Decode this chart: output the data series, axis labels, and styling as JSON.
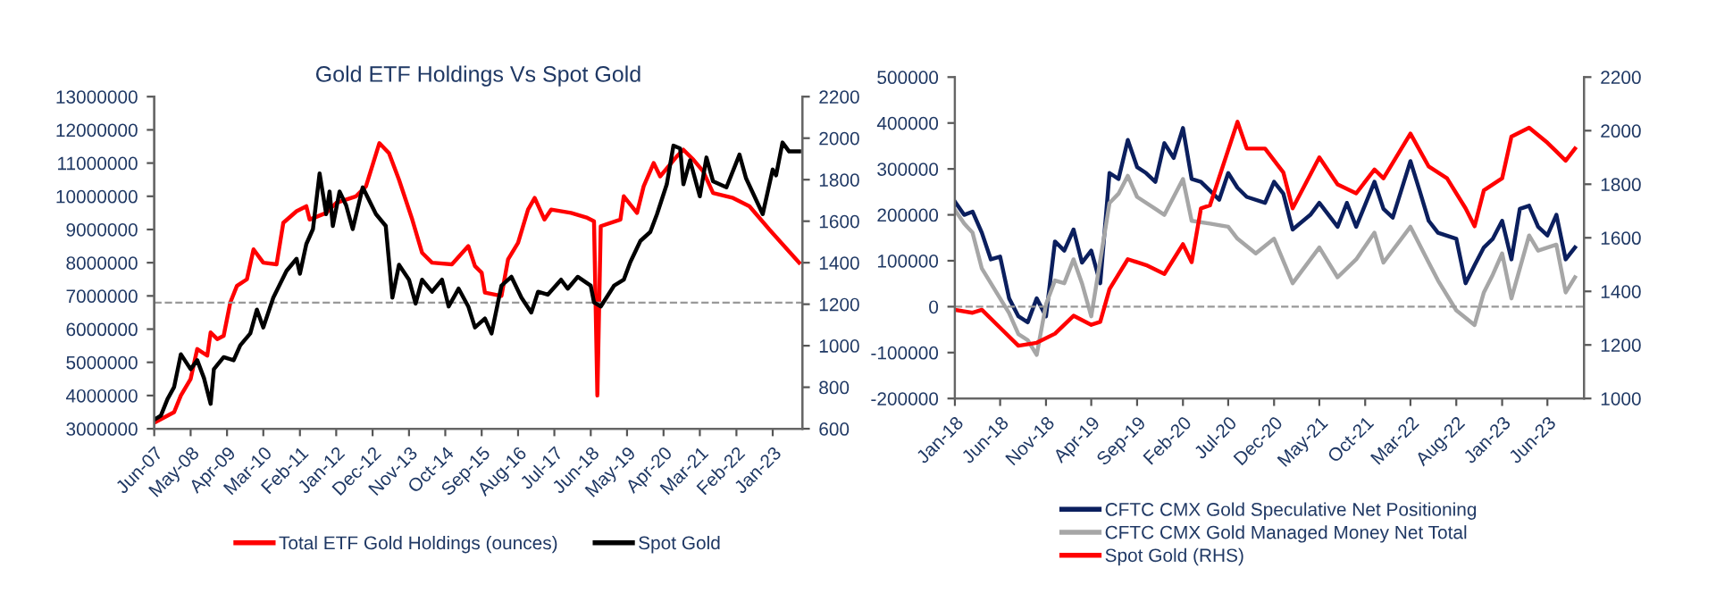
{
  "chart_data": [
    {
      "type": "line",
      "title": "Gold ETF Holdings Vs Spot Gold",
      "xlim": [
        "2007-06",
        "2023-10"
      ],
      "xticks": [
        {
          "value": "2007-06",
          "label": "Jun-07"
        },
        {
          "value": "2008-05",
          "label": "May-08"
        },
        {
          "value": "2009-04",
          "label": "Apr-09"
        },
        {
          "value": "2010-03",
          "label": "Mar-10"
        },
        {
          "value": "2011-02",
          "label": "Feb-11"
        },
        {
          "value": "2012-01",
          "label": "Jan-12"
        },
        {
          "value": "2012-12",
          "label": "Dec-12"
        },
        {
          "value": "2013-11",
          "label": "Nov-13"
        },
        {
          "value": "2014-10",
          "label": "Oct-14"
        },
        {
          "value": "2015-09",
          "label": "Sep-15"
        },
        {
          "value": "2016-08",
          "label": "Aug-16"
        },
        {
          "value": "2017-07",
          "label": "Jul-17"
        },
        {
          "value": "2018-06",
          "label": "Jun-18"
        },
        {
          "value": "2019-05",
          "label": "May-19"
        },
        {
          "value": "2020-04",
          "label": "Apr-20"
        },
        {
          "value": "2021-03",
          "label": "Mar-21"
        },
        {
          "value": "2022-02",
          "label": "Feb-22"
        },
        {
          "value": "2023-01",
          "label": "Jan-23"
        }
      ],
      "ylim": [
        3000000,
        13000000
      ],
      "yticks": [
        3000000,
        4000000,
        5000000,
        6000000,
        7000000,
        8000000,
        9000000,
        10000000,
        11000000,
        12000000,
        13000000
      ],
      "y2lim": [
        600,
        2200
      ],
      "y2ticks": [
        600,
        800,
        1000,
        1200,
        1400,
        1600,
        1800,
        2000,
        2200
      ],
      "legend": "bottom",
      "grid": false,
      "ref_lines": [
        {
          "axis": "y",
          "value": 6800000,
          "color": "#999999",
          "line_style": "dashed"
        }
      ],
      "series": [
        {
          "name": "Total ETF Gold Holdings (ounces)",
          "color": "#ff0000",
          "axis": "y",
          "x": [
            "2007-06",
            "2007-12",
            "2008-02",
            "2008-05",
            "2008-07",
            "2008-10",
            "2008-11",
            "2009-01",
            "2009-03",
            "2009-05",
            "2009-07",
            "2009-10",
            "2009-12",
            "2010-03",
            "2010-07",
            "2010-09",
            "2011-01",
            "2011-04",
            "2011-05",
            "2011-10",
            "2012-01",
            "2012-07",
            "2012-10",
            "2013-02",
            "2013-05",
            "2013-08",
            "2013-12",
            "2014-03",
            "2014-06",
            "2014-12",
            "2015-05",
            "2015-07",
            "2015-09",
            "2015-10",
            "2016-03",
            "2016-05",
            "2016-08",
            "2016-11",
            "2017-01",
            "2017-04",
            "2017-06",
            "2017-12",
            "2018-05",
            "2018-07",
            "2018-08",
            "2018-09",
            "2019-03",
            "2019-04",
            "2019-08",
            "2019-10",
            "2020-01",
            "2020-03",
            "2020-08",
            "2020-10",
            "2021-01",
            "2021-04",
            "2021-07",
            "2022-01",
            "2022-06",
            "2022-12",
            "2023-05",
            "2023-09"
          ],
          "values": [
            3180000,
            3500000,
            4000000,
            4500000,
            5400000,
            5200000,
            5900000,
            5700000,
            5800000,
            6800000,
            7300000,
            7500000,
            8400000,
            8000000,
            7950000,
            9200000,
            9550000,
            9700000,
            9300000,
            9500000,
            9800000,
            10000000,
            10300000,
            11600000,
            11300000,
            10500000,
            9300000,
            8300000,
            8000000,
            7950000,
            8500000,
            7900000,
            7700000,
            7100000,
            7000000,
            8100000,
            8600000,
            9600000,
            9950000,
            9300000,
            9600000,
            9500000,
            9350000,
            9250000,
            4000000,
            9100000,
            9300000,
            10000000,
            9500000,
            10300000,
            11000000,
            10600000,
            11200000,
            11400000,
            11100000,
            10750000,
            10100000,
            9950000,
            9700000,
            9000000,
            8450000,
            8000000
          ]
        },
        {
          "name": "Spot Gold",
          "color": "#000000",
          "axis": "y2",
          "x": [
            "2007-06",
            "2007-08",
            "2007-10",
            "2007-12",
            "2008-02",
            "2008-05",
            "2008-07",
            "2008-09",
            "2008-11",
            "2008-12",
            "2009-03",
            "2009-06",
            "2009-08",
            "2009-11",
            "2010-01",
            "2010-03",
            "2010-06",
            "2010-10",
            "2011-01",
            "2011-02",
            "2011-04",
            "2011-06",
            "2011-08",
            "2011-10",
            "2011-11",
            "2011-12",
            "2012-02",
            "2012-04",
            "2012-06",
            "2012-09",
            "2013-01",
            "2013-04",
            "2013-06",
            "2013-08",
            "2013-11",
            "2014-01",
            "2014-03",
            "2014-06",
            "2014-09",
            "2014-11",
            "2015-02",
            "2015-05",
            "2015-07",
            "2015-10",
            "2015-12",
            "2016-03",
            "2016-06",
            "2016-09",
            "2016-12",
            "2017-02",
            "2017-05",
            "2017-09",
            "2017-11",
            "2018-02",
            "2018-06",
            "2018-07",
            "2018-09",
            "2019-01",
            "2019-04",
            "2019-06",
            "2019-09",
            "2019-12",
            "2020-02",
            "2020-05",
            "2020-07",
            "2020-09",
            "2020-10",
            "2020-12",
            "2021-03",
            "2021-05",
            "2021-07",
            "2021-11",
            "2022-03",
            "2022-05",
            "2022-10",
            "2023-01",
            "2023-02",
            "2023-04",
            "2023-06",
            "2023-09"
          ],
          "values": [
            643,
            663,
            743,
            801,
            959,
            887,
            930,
            844,
            720,
            887,
            945,
            930,
            1002,
            1059,
            1174,
            1088,
            1232,
            1361,
            1419,
            1347,
            1490,
            1562,
            1830,
            1634,
            1743,
            1577,
            1743,
            1677,
            1562,
            1763,
            1634,
            1577,
            1232,
            1390,
            1318,
            1203,
            1318,
            1260,
            1318,
            1189,
            1275,
            1189,
            1088,
            1131,
            1059,
            1289,
            1332,
            1232,
            1160,
            1260,
            1246,
            1318,
            1275,
            1332,
            1289,
            1209,
            1189,
            1289,
            1318,
            1404,
            1505,
            1548,
            1634,
            1778,
            1964,
            1950,
            1778,
            1893,
            1720,
            1907,
            1792,
            1763,
            1921,
            1806,
            1634,
            1849,
            1821,
            1979,
            1936,
            1936
          ]
        }
      ]
    },
    {
      "type": "line",
      "xlim": [
        "2018-01",
        "2023-10"
      ],
      "xticks": [
        {
          "value": "2018-01",
          "label": "Jan-18"
        },
        {
          "value": "2018-06",
          "label": "Jun-18"
        },
        {
          "value": "2018-11",
          "label": "Nov-18"
        },
        {
          "value": "2019-04",
          "label": "Apr-19"
        },
        {
          "value": "2019-09",
          "label": "Sep-19"
        },
        {
          "value": "2020-02",
          "label": "Feb-20"
        },
        {
          "value": "2020-07",
          "label": "Jul-20"
        },
        {
          "value": "2020-12",
          "label": "Dec-20"
        },
        {
          "value": "2021-05",
          "label": "May-21"
        },
        {
          "value": "2021-10",
          "label": "Oct-21"
        },
        {
          "value": "2022-03",
          "label": "Mar-22"
        },
        {
          "value": "2022-08",
          "label": "Aug-22"
        },
        {
          "value": "2023-01",
          "label": "Jan-23"
        },
        {
          "value": "2023-06",
          "label": "Jun-23"
        }
      ],
      "ylim": [
        -200000,
        500000
      ],
      "yticks": [
        -200000,
        -100000,
        0,
        100000,
        200000,
        300000,
        400000,
        500000
      ],
      "y2lim": [
        1000,
        2200
      ],
      "y2ticks": [
        1000,
        1200,
        1400,
        1600,
        1800,
        2000,
        2200
      ],
      "legend": "bottom",
      "grid": false,
      "ref_lines": [
        {
          "axis": "y",
          "value": 0,
          "color": "#999999",
          "line_style": "dashed"
        }
      ],
      "series": [
        {
          "name": "CFTC CMX Gold Speculative Net Positioning",
          "color": "#0b1f5e",
          "axis": "y",
          "x": [
            "2018-01",
            "2018-02",
            "2018-03",
            "2018-04",
            "2018-05",
            "2018-06",
            "2018-07",
            "2018-08",
            "2018-09",
            "2018-10",
            "2018-11",
            "2018-12",
            "2019-01",
            "2019-02",
            "2019-03",
            "2019-04",
            "2019-05",
            "2019-06",
            "2019-07",
            "2019-08",
            "2019-09",
            "2019-10",
            "2019-11",
            "2019-12",
            "2020-01",
            "2020-02",
            "2020-03",
            "2020-04",
            "2020-06",
            "2020-07",
            "2020-08",
            "2020-09",
            "2020-11",
            "2020-12",
            "2021-01",
            "2021-02",
            "2021-04",
            "2021-05",
            "2021-07",
            "2021-08",
            "2021-09",
            "2021-11",
            "2021-12",
            "2022-01",
            "2022-03",
            "2022-04",
            "2022-05",
            "2022-06",
            "2022-08",
            "2022-09",
            "2022-10",
            "2022-11",
            "2022-12",
            "2023-01",
            "2023-02",
            "2023-03",
            "2023-04",
            "2023-05",
            "2023-06",
            "2023-07",
            "2023-08",
            "2023-09"
          ],
          "values": [
            229000,
            200000,
            207000,
            161000,
            103000,
            109000,
            18000,
            -21000,
            -34000,
            18000,
            -21000,
            142000,
            122000,
            168000,
            96000,
            122000,
            51000,
            291000,
            278000,
            363000,
            304000,
            291000,
            272000,
            356000,
            324000,
            389000,
            278000,
            272000,
            233000,
            291000,
            259000,
            239000,
            226000,
            272000,
            246000,
            168000,
            200000,
            226000,
            174000,
            226000,
            174000,
            272000,
            213000,
            194000,
            317000,
            252000,
            187000,
            161000,
            148000,
            51000,
            90000,
            129000,
            148000,
            187000,
            103000,
            213000,
            220000,
            174000,
            155000,
            200000,
            103000,
            129000
          ]
        },
        {
          "name": "CFTC CMX Gold Managed Money Net Total",
          "color": "#a6a6a6",
          "axis": "y",
          "x": [
            "2018-01",
            "2018-02",
            "2018-03",
            "2018-04",
            "2018-05",
            "2018-07",
            "2018-08",
            "2018-09",
            "2018-10",
            "2018-11",
            "2018-12",
            "2019-01",
            "2019-02",
            "2019-03",
            "2019-04",
            "2019-06",
            "2019-07",
            "2019-08",
            "2019-09",
            "2019-11",
            "2019-12",
            "2020-02",
            "2020-03",
            "2020-05",
            "2020-07",
            "2020-08",
            "2020-10",
            "2020-12",
            "2021-02",
            "2021-05",
            "2021-07",
            "2021-09",
            "2021-11",
            "2021-12",
            "2022-03",
            "2022-05",
            "2022-06",
            "2022-08",
            "2022-10",
            "2022-11",
            "2022-12",
            "2023-01",
            "2023-02",
            "2023-04",
            "2023-05",
            "2023-07",
            "2023-08",
            "2023-09"
          ],
          "values": [
            211000,
            181000,
            161000,
            83000,
            51000,
            -14000,
            -60000,
            -73000,
            -105000,
            5000,
            57000,
            51000,
            103000,
            51000,
            -21000,
            226000,
            246000,
            285000,
            239000,
            213000,
            200000,
            278000,
            187000,
            181000,
            174000,
            148000,
            116000,
            148000,
            51000,
            129000,
            64000,
            103000,
            161000,
            96000,
            174000,
            96000,
            57000,
            -8000,
            -40000,
            31000,
            70000,
            116000,
            18000,
            155000,
            122000,
            135000,
            31000,
            64000
          ]
        },
        {
          "name": "Spot Gold (RHS)",
          "color": "#ff0000",
          "axis": "y2",
          "x": [
            "2018-01",
            "2018-03",
            "2018-04",
            "2018-06",
            "2018-08",
            "2018-10",
            "2018-12",
            "2019-02",
            "2019-04",
            "2019-05",
            "2019-06",
            "2019-08",
            "2019-10",
            "2019-12",
            "2020-02",
            "2020-03",
            "2020-04",
            "2020-05",
            "2020-08",
            "2020-09",
            "2020-11",
            "2021-01",
            "2021-02",
            "2021-05",
            "2021-07",
            "2021-09",
            "2021-11",
            "2021-12",
            "2022-03",
            "2022-05",
            "2022-07",
            "2022-09",
            "2022-10",
            "2022-11",
            "2023-01",
            "2023-02",
            "2023-04",
            "2023-06",
            "2023-07",
            "2023-08",
            "2023-09"
          ],
          "values": [
            1331,
            1320,
            1331,
            1264,
            1197,
            1208,
            1242,
            1309,
            1275,
            1286,
            1409,
            1520,
            1498,
            1465,
            1576,
            1509,
            1710,
            1721,
            2033,
            1933,
            1933,
            1844,
            1710,
            1900,
            1799,
            1766,
            1855,
            1822,
            1989,
            1866,
            1822,
            1710,
            1643,
            1777,
            1822,
            1978,
            2011,
            1955,
            1922,
            1888,
            1933
          ]
        }
      ]
    }
  ]
}
